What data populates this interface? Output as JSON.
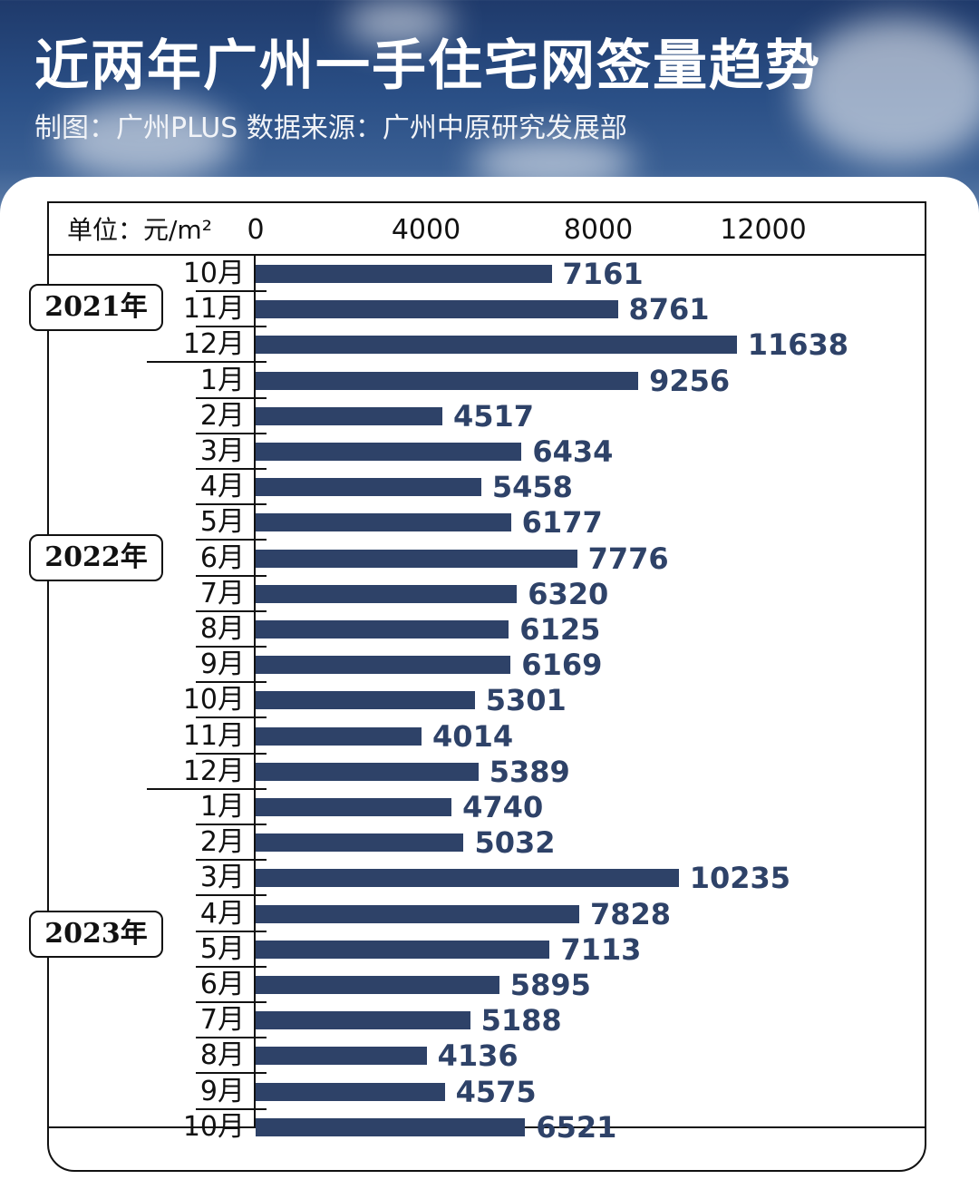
{
  "header": {
    "title": "近两年广州一手住宅网签量趋势",
    "subtitle": "制图：广州PLUS   数据来源：广州中原研究发展部"
  },
  "chart": {
    "unit_label": "单位：元/m²",
    "ticks": [
      "0",
      "4000",
      "8000",
      "12000"
    ],
    "bar_color": "#2e4268"
  },
  "years": [
    "2021年",
    "2022年",
    "2023年"
  ],
  "chart_data": {
    "type": "bar",
    "orientation": "horizontal",
    "title": "近两年广州一手住宅网签量趋势",
    "subtitle": "制图：广州PLUS 数据来源：广州中原研究发展部",
    "xlabel": "单位：元/m²",
    "ylabel": "",
    "xlim": [
      0,
      16000
    ],
    "x_ticks": [
      0,
      4000,
      8000,
      12000
    ],
    "grid": false,
    "legend": null,
    "groups": [
      {
        "year": "2021年",
        "months": [
          "10月",
          "11月",
          "12月"
        ]
      },
      {
        "year": "2022年",
        "months": [
          "1月",
          "2月",
          "3月",
          "4月",
          "5月",
          "6月",
          "7月",
          "8月",
          "9月",
          "10月",
          "11月",
          "12月"
        ]
      },
      {
        "year": "2023年",
        "months": [
          "1月",
          "2月",
          "3月",
          "4月",
          "5月",
          "6月",
          "7月",
          "8月",
          "9月",
          "10月"
        ]
      }
    ],
    "categories": [
      "2021-10月",
      "2021-11月",
      "2021-12月",
      "2022-1月",
      "2022-2月",
      "2022-3月",
      "2022-4月",
      "2022-5月",
      "2022-6月",
      "2022-7月",
      "2022-8月",
      "2022-9月",
      "2022-10月",
      "2022-11月",
      "2022-12月",
      "2023-1月",
      "2023-2月",
      "2023-3月",
      "2023-4月",
      "2023-5月",
      "2023-6月",
      "2023-7月",
      "2023-8月",
      "2023-9月",
      "2023-10月"
    ],
    "values": [
      7161,
      8761,
      11638,
      9256,
      4517,
      6434,
      5458,
      6177,
      7776,
      6320,
      6125,
      6169,
      5301,
      4014,
      5389,
      4740,
      5032,
      10235,
      7828,
      7113,
      5895,
      5188,
      4136,
      4575,
      6521
    ]
  },
  "rows": [
    {
      "month": "10月",
      "value": "7161"
    },
    {
      "month": "11月",
      "value": "8761"
    },
    {
      "month": "12月",
      "value": "11638"
    },
    {
      "month": "1月",
      "value": "9256"
    },
    {
      "month": "2月",
      "value": "4517"
    },
    {
      "month": "3月",
      "value": "6434"
    },
    {
      "month": "4月",
      "value": "5458"
    },
    {
      "month": "5月",
      "value": "6177"
    },
    {
      "month": "6月",
      "value": "7776"
    },
    {
      "month": "7月",
      "value": "6320"
    },
    {
      "month": "8月",
      "value": "6125"
    },
    {
      "month": "9月",
      "value": "6169"
    },
    {
      "month": "10月",
      "value": "5301"
    },
    {
      "month": "11月",
      "value": "4014"
    },
    {
      "month": "12月",
      "value": "5389"
    },
    {
      "month": "1月",
      "value": "4740"
    },
    {
      "month": "2月",
      "value": "5032"
    },
    {
      "month": "3月",
      "value": "10235"
    },
    {
      "month": "4月",
      "value": "7828"
    },
    {
      "month": "5月",
      "value": "7113"
    },
    {
      "month": "6月",
      "value": "5895"
    },
    {
      "month": "7月",
      "value": "5188"
    },
    {
      "month": "8月",
      "value": "4136"
    },
    {
      "month": "9月",
      "value": "4575"
    },
    {
      "month": "10月",
      "value": "6521"
    }
  ]
}
